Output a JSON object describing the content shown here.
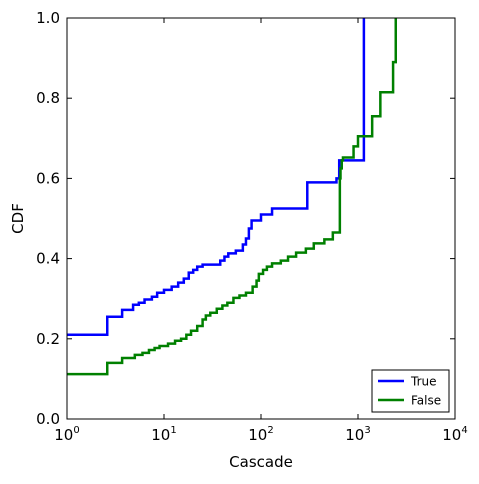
{
  "chart_data": {
    "type": "line",
    "title": "",
    "xlabel": "Cascade",
    "ylabel": "CDF",
    "xscale": "log",
    "xlim": [
      1,
      10000
    ],
    "ylim": [
      0.0,
      1.0
    ],
    "grid": false,
    "legend_position": "bottom-right",
    "x_ticks": [
      {
        "value": 1,
        "label": "10",
        "exp": "0"
      },
      {
        "value": 10,
        "label": "10",
        "exp": "1"
      },
      {
        "value": 100,
        "label": "10",
        "exp": "2"
      },
      {
        "value": 1000,
        "label": "10",
        "exp": "3"
      },
      {
        "value": 10000,
        "label": "10",
        "exp": "4"
      }
    ],
    "y_ticks": [
      {
        "value": 0.0,
        "label": "0.0"
      },
      {
        "value": 0.2,
        "label": "0.2"
      },
      {
        "value": 0.4,
        "label": "0.4"
      },
      {
        "value": 0.6,
        "label": "0.6"
      },
      {
        "value": 0.8,
        "label": "0.8"
      },
      {
        "value": 1.0,
        "label": "1.0"
      }
    ],
    "series": [
      {
        "name": "True",
        "color": "#0000ff",
        "points": [
          [
            1,
            0.21
          ],
          [
            2.6,
            0.21
          ],
          [
            2.6,
            0.255
          ],
          [
            3.7,
            0.255
          ],
          [
            3.7,
            0.272
          ],
          [
            4.8,
            0.272
          ],
          [
            4.8,
            0.285
          ],
          [
            5.5,
            0.285
          ],
          [
            5.5,
            0.29
          ],
          [
            6.3,
            0.29
          ],
          [
            6.3,
            0.298
          ],
          [
            7.5,
            0.298
          ],
          [
            7.5,
            0.305
          ],
          [
            8.5,
            0.305
          ],
          [
            8.5,
            0.315
          ],
          [
            10,
            0.315
          ],
          [
            10,
            0.322
          ],
          [
            12,
            0.322
          ],
          [
            12,
            0.33
          ],
          [
            14,
            0.33
          ],
          [
            14,
            0.34
          ],
          [
            16,
            0.34
          ],
          [
            16,
            0.35
          ],
          [
            18,
            0.35
          ],
          [
            18,
            0.365
          ],
          [
            20,
            0.365
          ],
          [
            20,
            0.372
          ],
          [
            22,
            0.372
          ],
          [
            22,
            0.38
          ],
          [
            25,
            0.38
          ],
          [
            25,
            0.385
          ],
          [
            38,
            0.385
          ],
          [
            38,
            0.395
          ],
          [
            42,
            0.395
          ],
          [
            42,
            0.405
          ],
          [
            46,
            0.405
          ],
          [
            46,
            0.413
          ],
          [
            55,
            0.413
          ],
          [
            55,
            0.42
          ],
          [
            65,
            0.42
          ],
          [
            65,
            0.435
          ],
          [
            70,
            0.435
          ],
          [
            70,
            0.45
          ],
          [
            75,
            0.45
          ],
          [
            75,
            0.475
          ],
          [
            80,
            0.475
          ],
          [
            80,
            0.495
          ],
          [
            100,
            0.495
          ],
          [
            100,
            0.51
          ],
          [
            130,
            0.51
          ],
          [
            130,
            0.525
          ],
          [
            300,
            0.525
          ],
          [
            300,
            0.59
          ],
          [
            600,
            0.59
          ],
          [
            600,
            0.6
          ],
          [
            640,
            0.6
          ],
          [
            640,
            0.645
          ],
          [
            1150,
            0.645
          ],
          [
            1150,
            1.0
          ]
        ]
      },
      {
        "name": "False",
        "color": "#008000",
        "points": [
          [
            1,
            0.112
          ],
          [
            2.6,
            0.112
          ],
          [
            2.6,
            0.14
          ],
          [
            3.7,
            0.14
          ],
          [
            3.7,
            0.152
          ],
          [
            5,
            0.152
          ],
          [
            5,
            0.16
          ],
          [
            6,
            0.16
          ],
          [
            6,
            0.165
          ],
          [
            7,
            0.165
          ],
          [
            7,
            0.172
          ],
          [
            8,
            0.172
          ],
          [
            8,
            0.177
          ],
          [
            9,
            0.177
          ],
          [
            9,
            0.182
          ],
          [
            11,
            0.182
          ],
          [
            11,
            0.188
          ],
          [
            13,
            0.188
          ],
          [
            13,
            0.195
          ],
          [
            15,
            0.195
          ],
          [
            15,
            0.2
          ],
          [
            17,
            0.2
          ],
          [
            17,
            0.21
          ],
          [
            19,
            0.21
          ],
          [
            19,
            0.22
          ],
          [
            22,
            0.22
          ],
          [
            22,
            0.232
          ],
          [
            25,
            0.232
          ],
          [
            25,
            0.248
          ],
          [
            27,
            0.248
          ],
          [
            27,
            0.258
          ],
          [
            30,
            0.258
          ],
          [
            30,
            0.265
          ],
          [
            35,
            0.265
          ],
          [
            35,
            0.275
          ],
          [
            40,
            0.275
          ],
          [
            40,
            0.283
          ],
          [
            45,
            0.283
          ],
          [
            45,
            0.29
          ],
          [
            52,
            0.29
          ],
          [
            52,
            0.302
          ],
          [
            60,
            0.302
          ],
          [
            60,
            0.308
          ],
          [
            70,
            0.308
          ],
          [
            70,
            0.315
          ],
          [
            82,
            0.315
          ],
          [
            82,
            0.33
          ],
          [
            90,
            0.33
          ],
          [
            90,
            0.345
          ],
          [
            95,
            0.345
          ],
          [
            95,
            0.362
          ],
          [
            105,
            0.362
          ],
          [
            105,
            0.372
          ],
          [
            115,
            0.372
          ],
          [
            115,
            0.38
          ],
          [
            130,
            0.38
          ],
          [
            130,
            0.388
          ],
          [
            160,
            0.388
          ],
          [
            160,
            0.395
          ],
          [
            190,
            0.395
          ],
          [
            190,
            0.405
          ],
          [
            230,
            0.405
          ],
          [
            230,
            0.415
          ],
          [
            290,
            0.415
          ],
          [
            290,
            0.425
          ],
          [
            350,
            0.425
          ],
          [
            350,
            0.438
          ],
          [
            450,
            0.438
          ],
          [
            450,
            0.448
          ],
          [
            550,
            0.448
          ],
          [
            550,
            0.465
          ],
          [
            650,
            0.465
          ],
          [
            650,
            0.6
          ],
          [
            660,
            0.6
          ],
          [
            660,
            0.625
          ],
          [
            680,
            0.625
          ],
          [
            680,
            0.645
          ],
          [
            700,
            0.645
          ],
          [
            700,
            0.652
          ],
          [
            900,
            0.652
          ],
          [
            900,
            0.68
          ],
          [
            1000,
            0.68
          ],
          [
            1000,
            0.705
          ],
          [
            1400,
            0.705
          ],
          [
            1400,
            0.755
          ],
          [
            1700,
            0.755
          ],
          [
            1700,
            0.815
          ],
          [
            2300,
            0.815
          ],
          [
            2300,
            0.89
          ],
          [
            2450,
            0.89
          ],
          [
            2450,
            1.0
          ]
        ]
      }
    ]
  }
}
